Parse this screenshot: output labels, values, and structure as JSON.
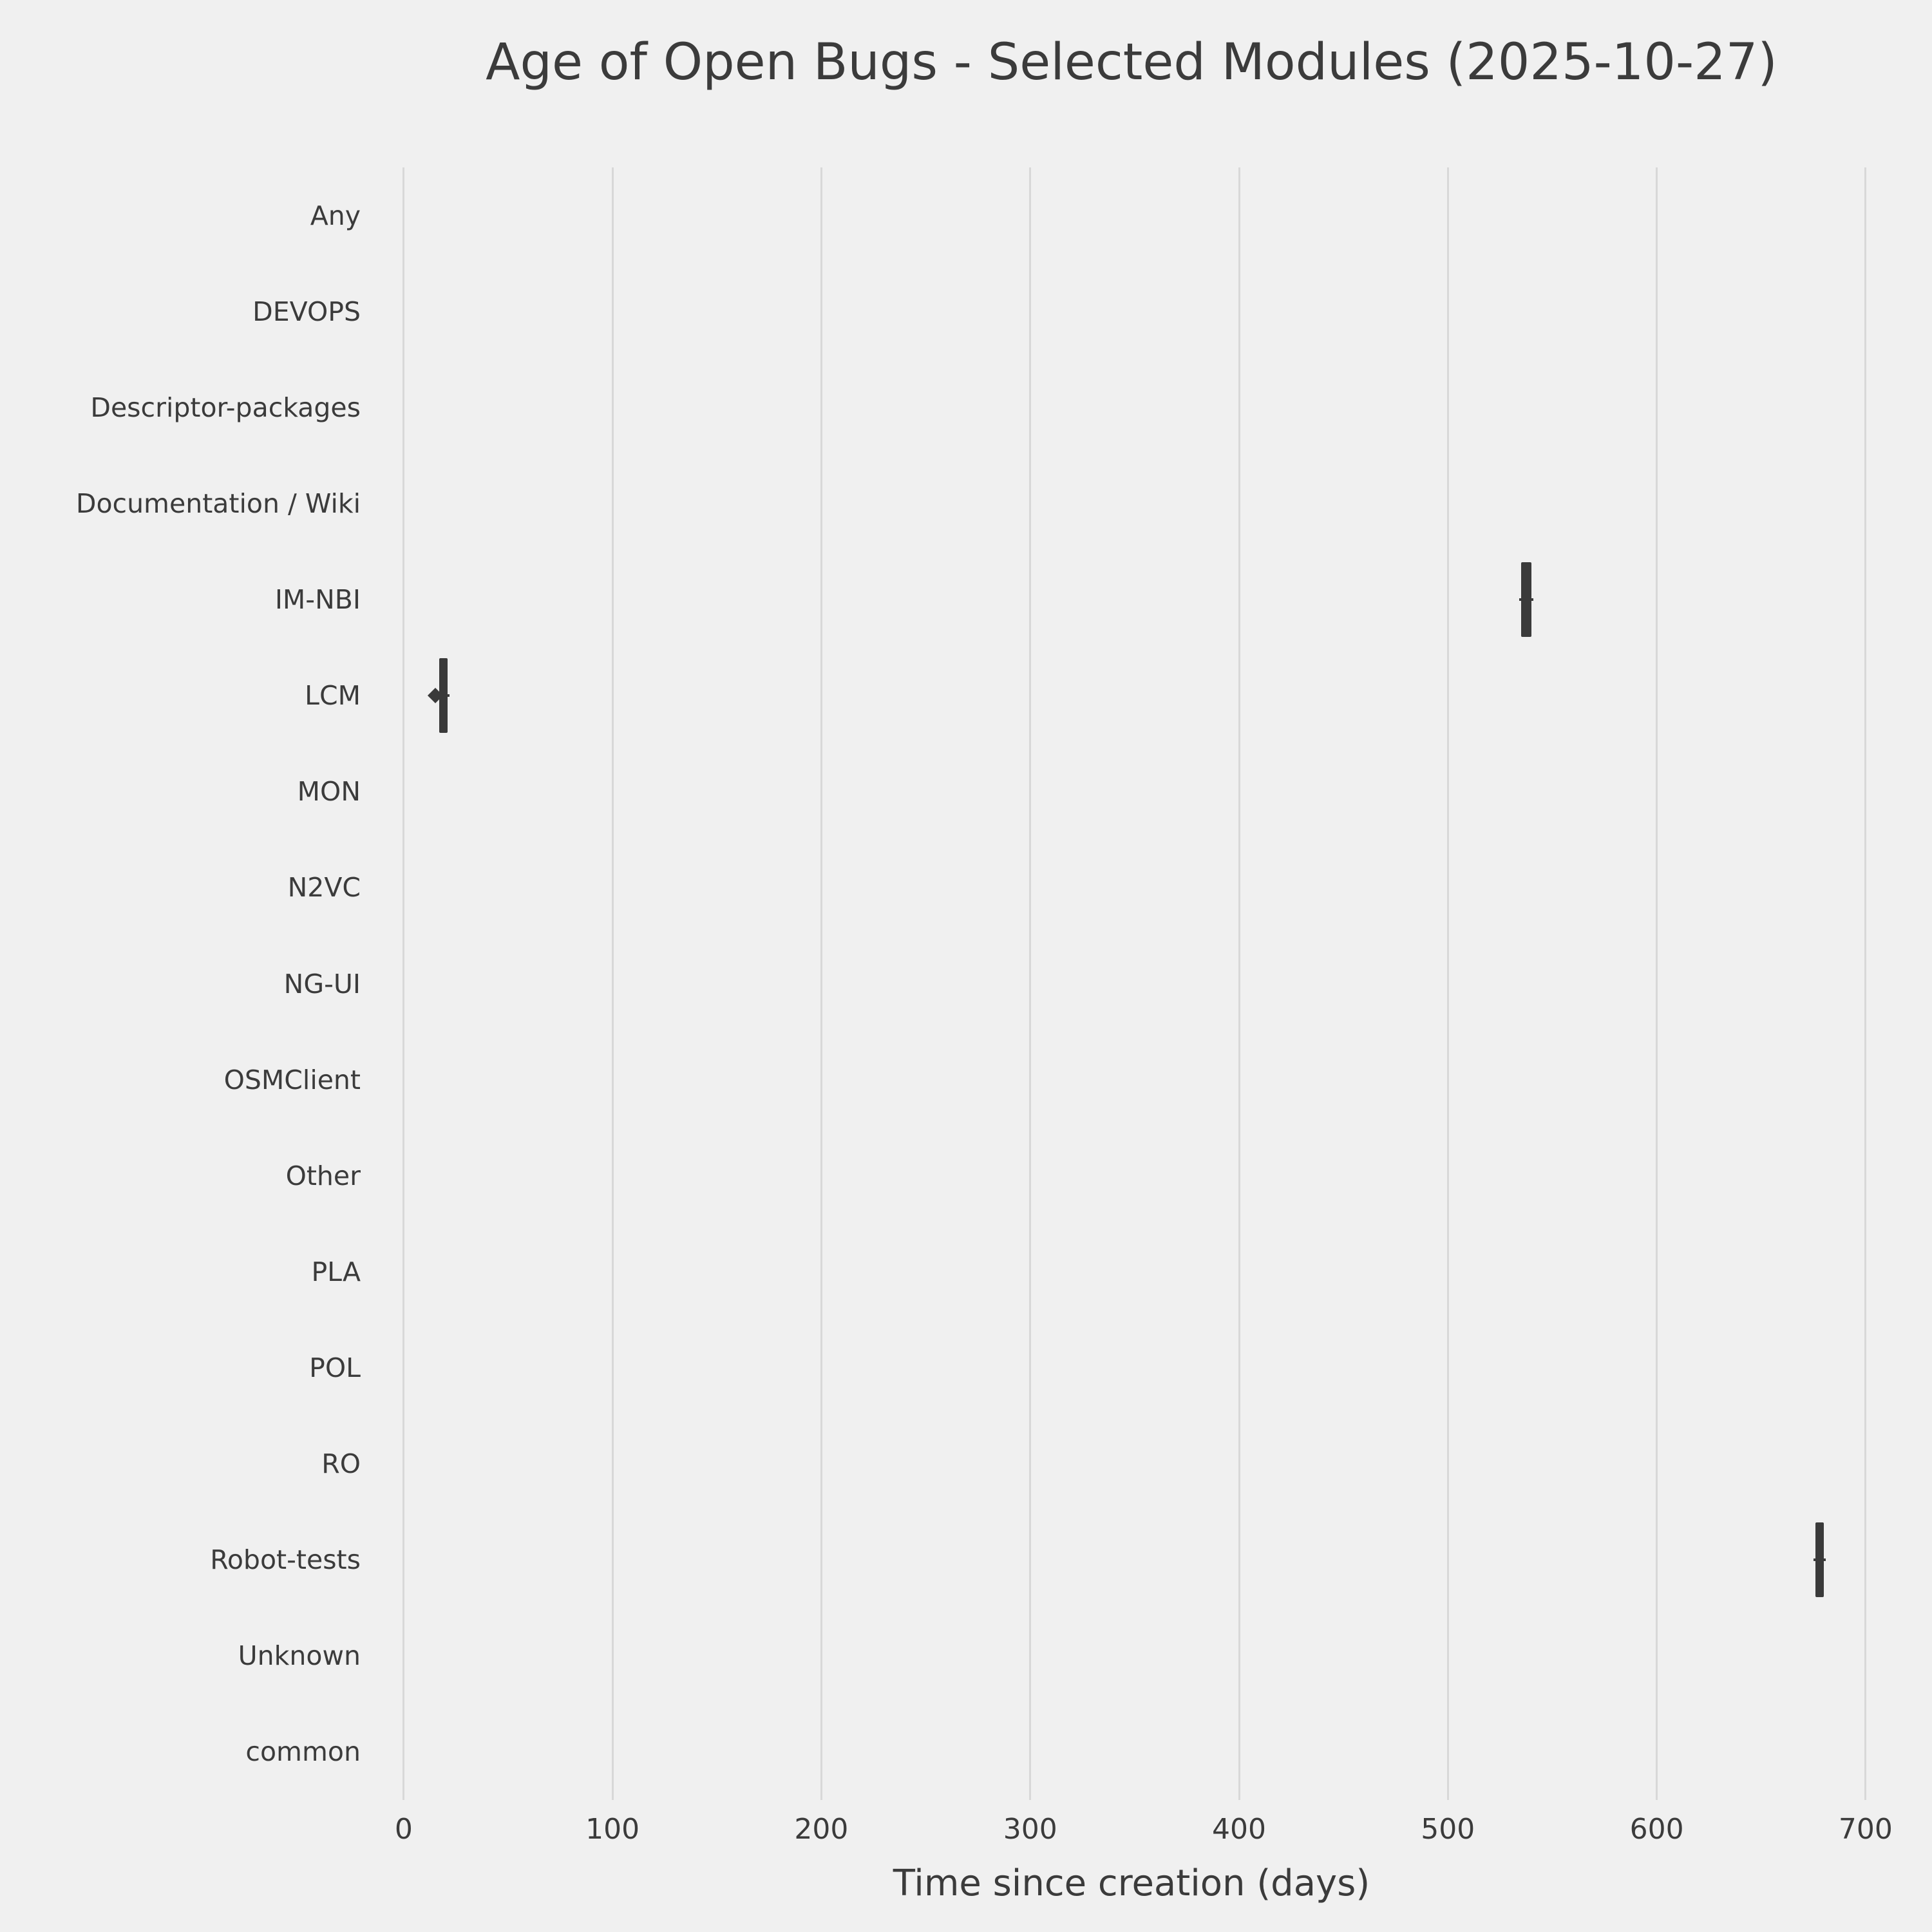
{
  "chart_data": {
    "type": "boxplot",
    "orientation": "horizontal",
    "title": "Age of Open Bugs - Selected Modules (2025-10-27)",
    "xlabel": "Time since creation (days)",
    "ylabel": "",
    "xlim": [
      -20,
      717
    ],
    "xticks": [
      0,
      100,
      200,
      300,
      400,
      500,
      600,
      700
    ],
    "grid": "vertical-only",
    "legend": "none",
    "categories": [
      "Any",
      "DEVOPS",
      "Descriptor-packages",
      "Documentation / Wiki",
      "IM-NBI",
      "LCM",
      "MON",
      "N2VC",
      "NG-UI",
      "OSMClient",
      "Other",
      "PLA",
      "POL",
      "RO",
      "Robot-tests",
      "Unknown",
      "common"
    ],
    "boxes": [
      null,
      null,
      null,
      null,
      {
        "category": "IM-NBI",
        "min": 534,
        "q1": 535,
        "median": 538,
        "q3": 540,
        "max": 541,
        "fliers": []
      },
      {
        "category": "LCM",
        "min": 16,
        "q1": 17,
        "median": 19,
        "q3": 21,
        "max": 22,
        "fliers": [
          15
        ]
      },
      null,
      null,
      null,
      null,
      null,
      null,
      null,
      null,
      {
        "category": "Robot-tests",
        "min": 675,
        "q1": 676,
        "median": 678,
        "q3": 680,
        "max": 681,
        "fliers": []
      },
      null,
      null
    ],
    "colors": {
      "background": "#f0f0f0",
      "gridline": "#d8d8d8",
      "box": "#3a3a3a",
      "text": "#3b3b3b"
    }
  }
}
